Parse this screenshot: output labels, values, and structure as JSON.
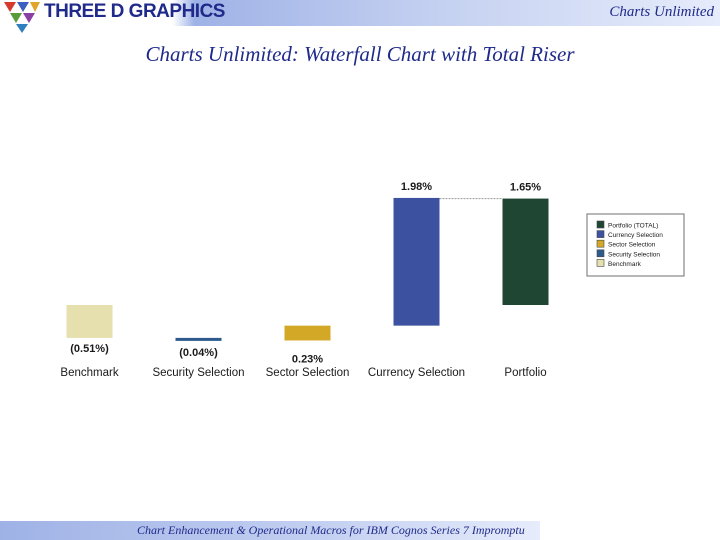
{
  "header": {
    "logo_text": "THREE D GRAPHICS",
    "right_text": "Charts Unlimited",
    "color": "#1f2a8a"
  },
  "title": "Charts Unlimited: Waterfall Chart with Total Riser",
  "footer": {
    "text": "Chart Enhancement & Operational Macros for IBM Cognos Series 7 Impromptu"
  },
  "chart_data": {
    "type": "bar",
    "subtype": "waterfall",
    "categories": [
      "Benchmark",
      "Security Selection",
      "Sector Selection",
      "Currency Selection",
      "Portfolio"
    ],
    "values": [
      -0.51,
      -0.04,
      0.23,
      1.98,
      1.65
    ],
    "value_labels": [
      "(0.51%)",
      "(0.04%)",
      "0.23%",
      "1.98%",
      "1.65%"
    ],
    "colors": [
      "#e6dfae",
      "#2d5a8c",
      "#d4a827",
      "#3c51a0",
      "#1f4632"
    ],
    "total_index": 4,
    "connector_from": 3,
    "legend": {
      "position": "right",
      "entries": [
        {
          "label": "Portfolio (TOTAL)",
          "color": "#1f4632"
        },
        {
          "label": "Currency Selection",
          "color": "#3c51a0"
        },
        {
          "label": "Sector Selection",
          "color": "#d4a827"
        },
        {
          "label": "Security Selection",
          "color": "#2d5a8c"
        },
        {
          "label": "Benchmark",
          "color": "#e6dfae"
        }
      ]
    },
    "grid": false,
    "axes_visible": false
  }
}
